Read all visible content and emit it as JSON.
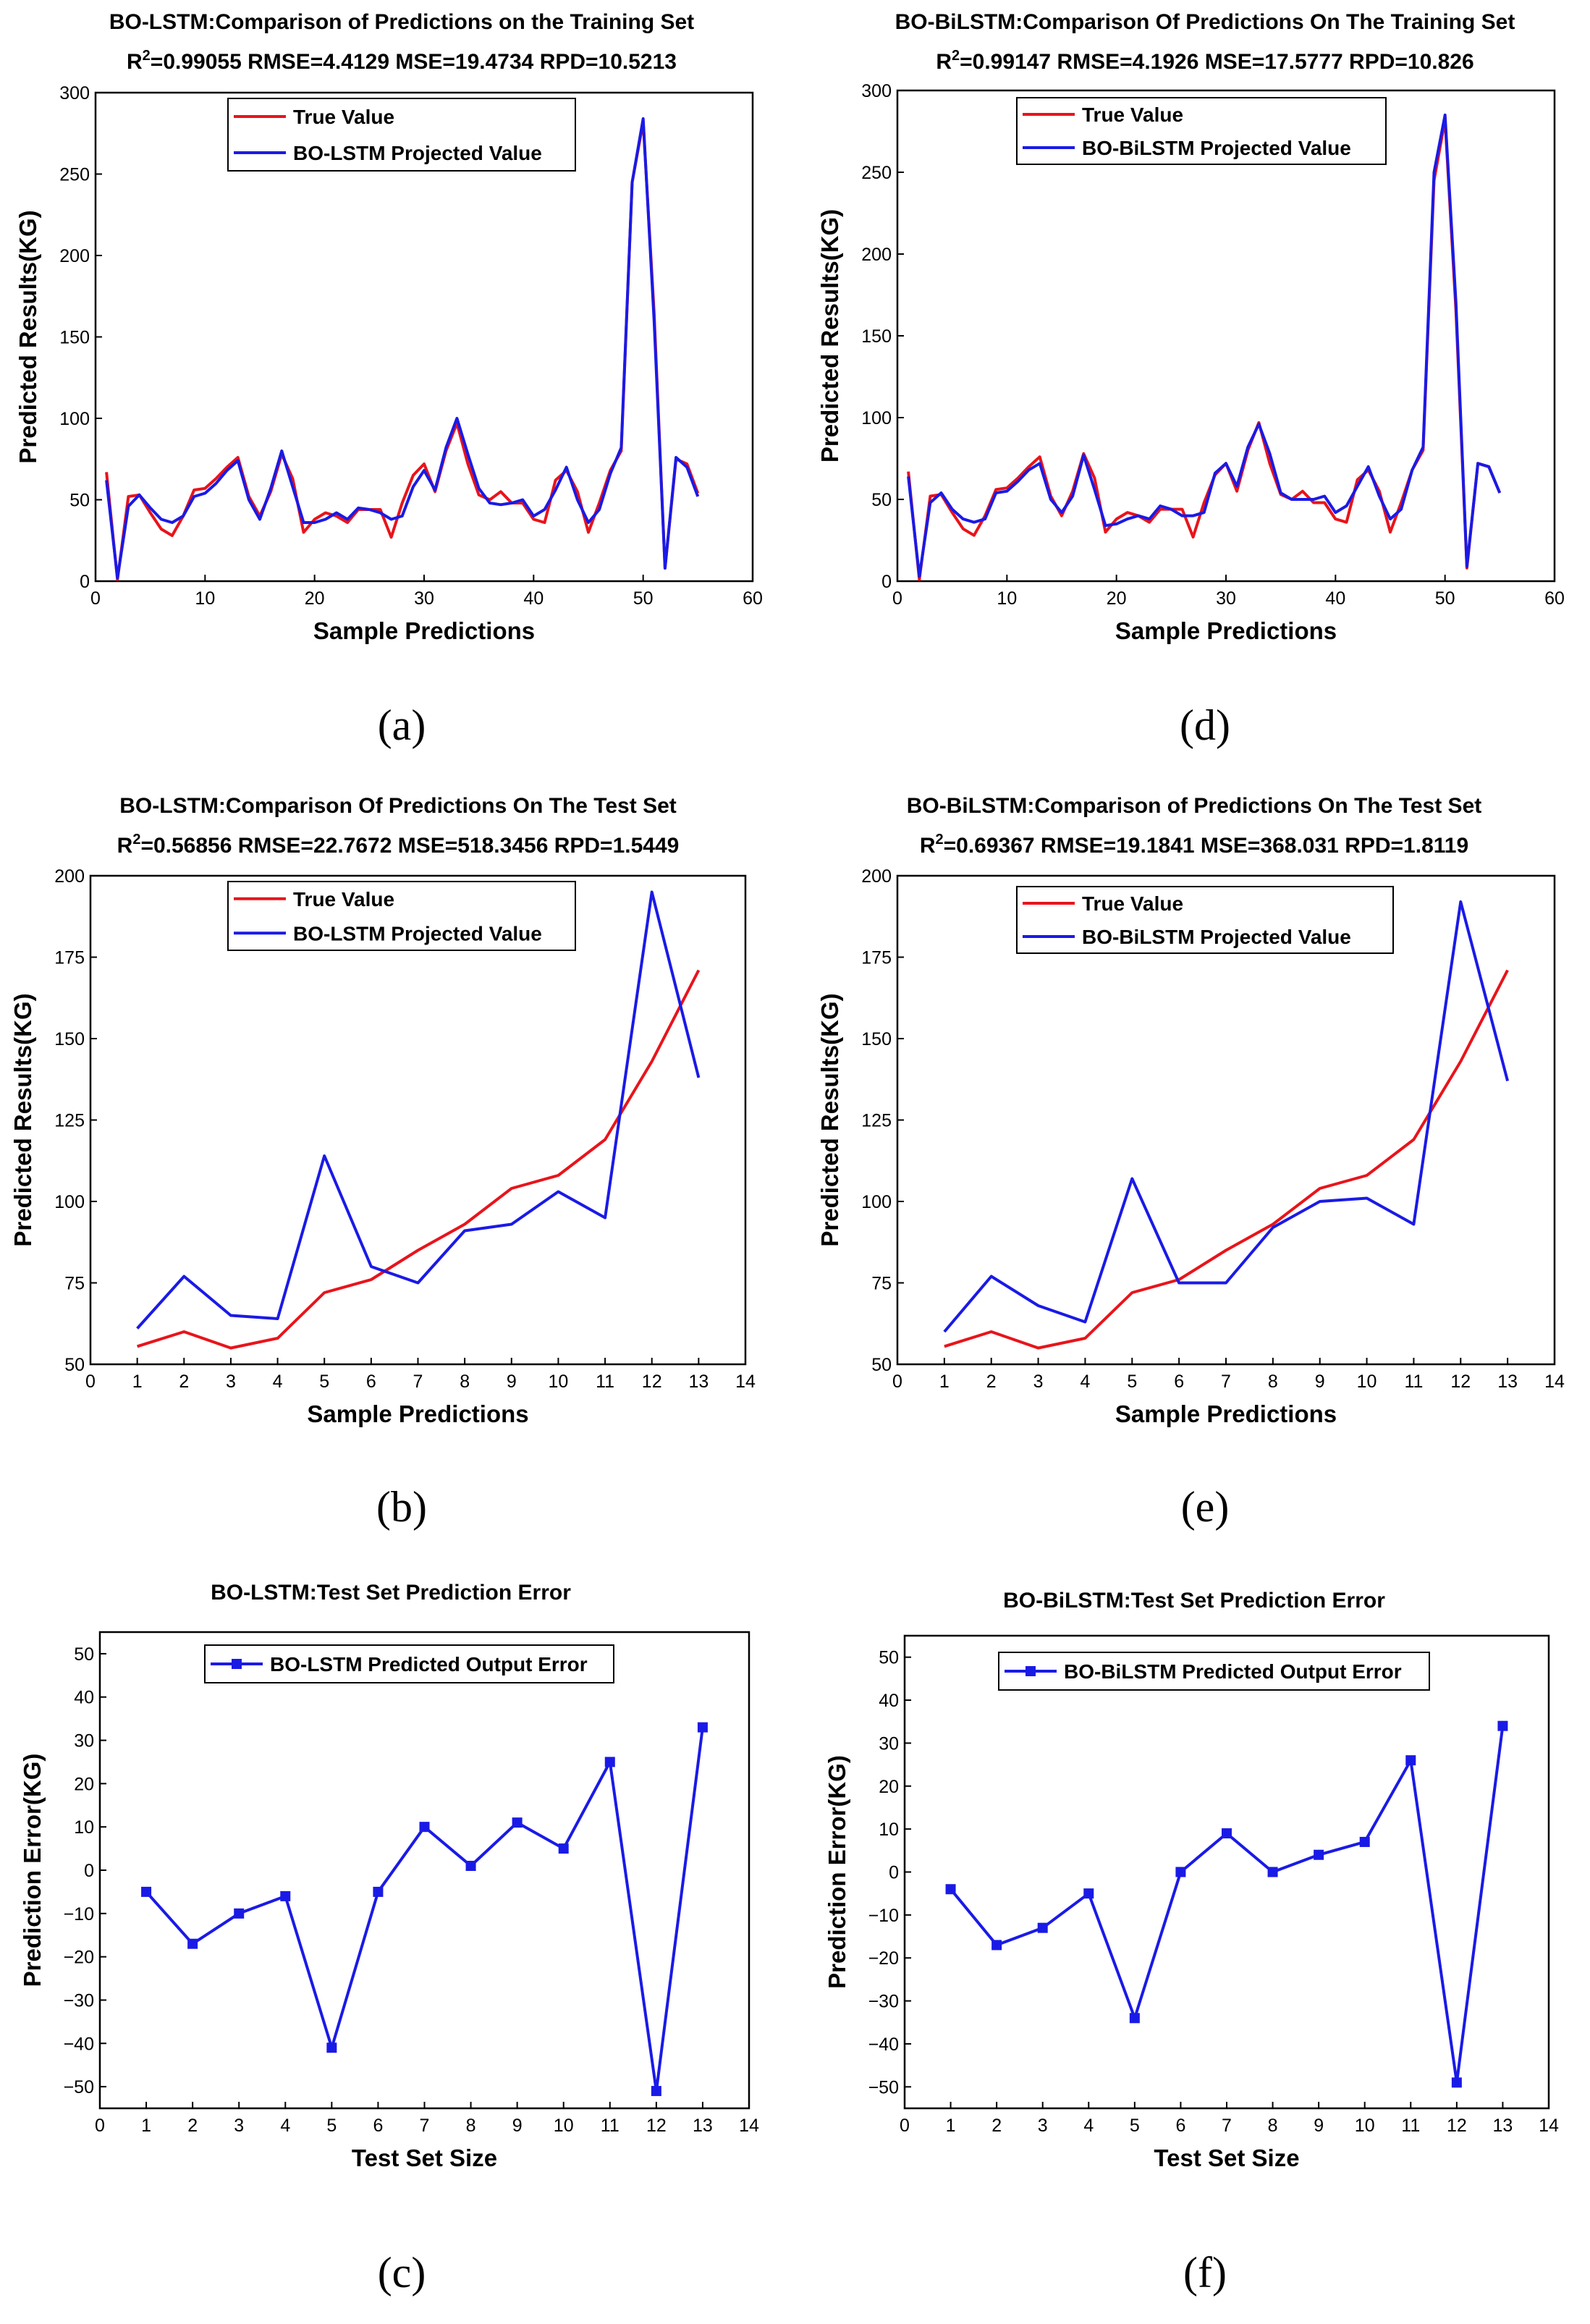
{
  "colors": {
    "true_value": "#e8141b",
    "predicted": "#1a1ae6",
    "axis": "#000000"
  },
  "chart_data": [
    {
      "id": "a",
      "type": "line",
      "panel_label": "(a)",
      "title": "BO-LSTM:Comparison of Predictions on the Training Set",
      "metrics_prefix": "R",
      "metrics_sup": "2",
      "metrics_rest": "=0.99055 RMSE=4.4129 MSE=19.4734 RPD=10.5213",
      "xlabel": "Sample Predictions",
      "ylabel": "Predicted Results(KG)",
      "xlim": [
        0,
        60
      ],
      "ylim": [
        0,
        300
      ],
      "xticks": [
        0,
        10,
        20,
        30,
        40,
        50,
        60
      ],
      "yticks": [
        0,
        50,
        100,
        150,
        200,
        250,
        300
      ],
      "legend": [
        "True Value",
        "BO-LSTM Projected Value"
      ],
      "series": [
        {
          "name": "True Value",
          "x": [
            1,
            2,
            3,
            4,
            5,
            6,
            7,
            8,
            9,
            10,
            11,
            12,
            13,
            14,
            15,
            16,
            17,
            18,
            19,
            20,
            21,
            22,
            23,
            24,
            25,
            26,
            27,
            28,
            29,
            30,
            31,
            32,
            33,
            34,
            35,
            36,
            37,
            38,
            39,
            40,
            41,
            42,
            43,
            44,
            45,
            46,
            47,
            48,
            49,
            50,
            51,
            52,
            53,
            54,
            55
          ],
          "values": [
            67,
            1,
            52,
            53,
            42,
            32,
            28,
            40,
            56,
            57,
            63,
            70,
            76,
            52,
            40,
            55,
            78,
            63,
            30,
            38,
            42,
            40,
            36,
            44,
            44,
            44,
            27,
            48,
            65,
            72,
            55,
            80,
            97,
            72,
            53,
            50,
            55,
            48,
            48,
            38,
            36,
            62,
            68,
            55,
            30,
            48,
            68,
            80,
            245,
            282,
            165,
            8,
            75,
            72,
            54
          ]
        },
        {
          "name": "BO-LSTM Projected Value",
          "x": [
            1,
            2,
            3,
            4,
            5,
            6,
            7,
            8,
            9,
            10,
            11,
            12,
            13,
            14,
            15,
            16,
            17,
            18,
            19,
            20,
            21,
            22,
            23,
            24,
            25,
            26,
            27,
            28,
            29,
            30,
            31,
            32,
            33,
            34,
            35,
            36,
            37,
            38,
            39,
            40,
            41,
            42,
            43,
            44,
            45,
            46,
            47,
            48,
            49,
            50,
            51,
            52,
            53,
            54,
            55
          ],
          "values": [
            62,
            2,
            46,
            53,
            45,
            38,
            36,
            40,
            52,
            54,
            60,
            68,
            74,
            50,
            38,
            57,
            80,
            58,
            36,
            36,
            38,
            42,
            38,
            45,
            44,
            42,
            38,
            40,
            58,
            68,
            56,
            82,
            100,
            78,
            57,
            48,
            47,
            48,
            50,
            40,
            44,
            56,
            70,
            50,
            36,
            44,
            66,
            82,
            245,
            284,
            160,
            8,
            76,
            70,
            52
          ]
        }
      ]
    },
    {
      "id": "d",
      "type": "line",
      "panel_label": "(d)",
      "title": "BO-BiLSTM:Comparison Of Predictions On The Training Set",
      "metrics_prefix": "R",
      "metrics_sup": "2",
      "metrics_rest": "=0.99147 RMSE=4.1926 MSE=17.5777 RPD=10.826",
      "xlabel": "Sample Predictions",
      "ylabel": "Predicted Results(KG)",
      "xlim": [
        0,
        60
      ],
      "ylim": [
        0,
        300
      ],
      "xticks": [
        0,
        10,
        20,
        30,
        40,
        50,
        60
      ],
      "yticks": [
        0,
        50,
        100,
        150,
        200,
        250,
        300
      ],
      "legend": [
        "True Value",
        "BO-BiLSTM Projected Value"
      ],
      "series": [
        {
          "name": "True Value",
          "x": [
            1,
            2,
            3,
            4,
            5,
            6,
            7,
            8,
            9,
            10,
            11,
            12,
            13,
            14,
            15,
            16,
            17,
            18,
            19,
            20,
            21,
            22,
            23,
            24,
            25,
            26,
            27,
            28,
            29,
            30,
            31,
            32,
            33,
            34,
            35,
            36,
            37,
            38,
            39,
            40,
            41,
            42,
            43,
            44,
            45,
            46,
            47,
            48,
            49,
            50,
            51,
            52,
            53,
            54,
            55
          ],
          "values": [
            67,
            1,
            52,
            53,
            42,
            32,
            28,
            40,
            56,
            57,
            63,
            70,
            76,
            52,
            40,
            55,
            78,
            63,
            30,
            38,
            42,
            40,
            36,
            44,
            44,
            44,
            27,
            48,
            65,
            72,
            55,
            80,
            97,
            72,
            53,
            50,
            55,
            48,
            48,
            38,
            36,
            62,
            68,
            55,
            30,
            48,
            68,
            80,
            245,
            282,
            165,
            8,
            72,
            70,
            54
          ]
        },
        {
          "name": "BO-BiLSTM Projected Value",
          "x": [
            1,
            2,
            3,
            4,
            5,
            6,
            7,
            8,
            9,
            10,
            11,
            12,
            13,
            14,
            15,
            16,
            17,
            18,
            19,
            20,
            21,
            22,
            23,
            24,
            25,
            26,
            27,
            28,
            29,
            30,
            31,
            32,
            33,
            34,
            35,
            36,
            37,
            38,
            39,
            40,
            41,
            42,
            43,
            44,
            45,
            46,
            47,
            48,
            49,
            50,
            51,
            52,
            53,
            54,
            55
          ],
          "values": [
            64,
            3,
            48,
            54,
            44,
            38,
            36,
            38,
            54,
            55,
            61,
            68,
            72,
            50,
            42,
            52,
            77,
            56,
            34,
            35,
            38,
            40,
            38,
            46,
            44,
            40,
            40,
            42,
            66,
            72,
            58,
            82,
            96,
            78,
            54,
            50,
            50,
            50,
            52,
            42,
            46,
            58,
            70,
            52,
            38,
            44,
            68,
            82,
            250,
            285,
            170,
            9,
            72,
            70,
            54
          ]
        }
      ]
    },
    {
      "id": "b",
      "type": "line",
      "panel_label": "(b)",
      "title": "BO-LSTM:Comparison Of Predictions On The Test Set",
      "metrics_prefix": "R",
      "metrics_sup": "2",
      "metrics_rest": "=0.56856 RMSE=22.7672 MSE=518.3456 RPD=1.5449",
      "xlabel": "Sample Predictions",
      "ylabel": "Predicted Results(KG)",
      "xlim": [
        0,
        14
      ],
      "ylim": [
        50,
        200
      ],
      "xticks": [
        0,
        1,
        2,
        3,
        4,
        5,
        6,
        7,
        8,
        9,
        10,
        11,
        12,
        13,
        14
      ],
      "yticks": [
        50,
        75,
        100,
        125,
        150,
        175,
        200
      ],
      "legend": [
        "True Value",
        "BO-LSTM Projected Value"
      ],
      "series": [
        {
          "name": "True Value",
          "x": [
            1,
            2,
            3,
            4,
            5,
            6,
            7,
            8,
            9,
            10,
            11,
            12,
            13
          ],
          "values": [
            55.5,
            60,
            55,
            58,
            72,
            76,
            85,
            93,
            104,
            108,
            119,
            143,
            171
          ]
        },
        {
          "name": "BO-LSTM Projected Value",
          "x": [
            1,
            2,
            3,
            4,
            5,
            6,
            7,
            8,
            9,
            10,
            11,
            12,
            13
          ],
          "values": [
            61,
            77,
            65,
            64,
            114,
            80,
            75,
            91,
            93,
            103,
            95,
            195,
            138
          ]
        }
      ]
    },
    {
      "id": "e",
      "type": "line",
      "panel_label": "(e)",
      "title": "BO-BiLSTM:Comparison of Predictions On The Test Set",
      "metrics_prefix": "R",
      "metrics_sup": "2",
      "metrics_rest": "=0.69367 RMSE=19.1841 MSE=368.031 RPD=1.8119",
      "xlabel": "Sample Predictions",
      "ylabel": "Predicted Results(KG)",
      "xlim": [
        0,
        14
      ],
      "ylim": [
        50,
        200
      ],
      "xticks": [
        0,
        1,
        2,
        3,
        4,
        5,
        6,
        7,
        8,
        9,
        10,
        11,
        12,
        13,
        14
      ],
      "yticks": [
        50,
        75,
        100,
        125,
        150,
        175,
        200
      ],
      "legend": [
        "True Value",
        "BO-BiLSTM Projected Value"
      ],
      "series": [
        {
          "name": "True Value",
          "x": [
            1,
            2,
            3,
            4,
            5,
            6,
            7,
            8,
            9,
            10,
            11,
            12,
            13
          ],
          "values": [
            55.5,
            60,
            55,
            58,
            72,
            76,
            85,
            93,
            104,
            108,
            119,
            143,
            171
          ]
        },
        {
          "name": "BO-BiLSTM Projected Value",
          "x": [
            1,
            2,
            3,
            4,
            5,
            6,
            7,
            8,
            9,
            10,
            11,
            12,
            13
          ],
          "values": [
            60,
            77,
            68,
            63,
            107,
            75,
            75,
            92,
            100,
            101,
            93,
            192,
            137
          ]
        }
      ]
    },
    {
      "id": "c",
      "type": "line",
      "panel_label": "(c)",
      "title": "BO-LSTM:Test Set Prediction Error",
      "xlabel": "Test Set Size",
      "ylabel": "Prediction Error(KG)",
      "xlim": [
        0,
        14
      ],
      "ylim": [
        -55,
        55
      ],
      "xticks": [
        0,
        1,
        2,
        3,
        4,
        5,
        6,
        7,
        8,
        9,
        10,
        11,
        12,
        13,
        14
      ],
      "yticks": [
        -50,
        -40,
        -30,
        -20,
        -10,
        0,
        10,
        20,
        30,
        40,
        50
      ],
      "legend": [
        "BO-LSTM Predicted Output Error"
      ],
      "series": [
        {
          "name": "BO-LSTM Predicted Output Error",
          "markers": true,
          "x": [
            1,
            2,
            3,
            4,
            5,
            6,
            7,
            8,
            9,
            10,
            11,
            12,
            13
          ],
          "values": [
            -5,
            -17,
            -10,
            -6,
            -41,
            -5,
            10,
            1,
            11,
            5,
            25,
            -51,
            33
          ]
        }
      ]
    },
    {
      "id": "f",
      "type": "line",
      "panel_label": "(f)",
      "title": "BO-BiLSTM:Test Set Prediction Error",
      "xlabel": "Test Set Size",
      "ylabel": "Prediction Error(KG)",
      "xlim": [
        0,
        14
      ],
      "ylim": [
        -55,
        55
      ],
      "xticks": [
        0,
        1,
        2,
        3,
        4,
        5,
        6,
        7,
        8,
        9,
        10,
        11,
        12,
        13,
        14
      ],
      "yticks": [
        -50,
        -40,
        -30,
        -20,
        -10,
        0,
        10,
        20,
        30,
        40,
        50
      ],
      "legend": [
        "BO-BiLSTM Predicted Output Error"
      ],
      "series": [
        {
          "name": "BO-BiLSTM Predicted Output Error",
          "markers": true,
          "x": [
            1,
            2,
            3,
            4,
            5,
            6,
            7,
            8,
            9,
            10,
            11,
            12,
            13
          ],
          "values": [
            -4,
            -17,
            -13,
            -5,
            -34,
            0,
            9,
            0,
            4,
            7,
            26,
            -49,
            34
          ]
        }
      ]
    }
  ]
}
